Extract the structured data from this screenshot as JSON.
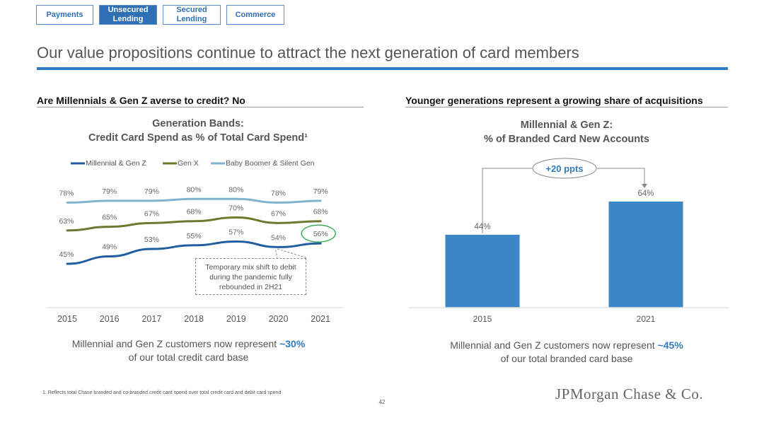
{
  "nav": {
    "tabs": [
      {
        "label": "Payments",
        "active": false
      },
      {
        "label": "Unsecured\nLending",
        "active": true
      },
      {
        "label": "Secured\nLending",
        "active": false
      },
      {
        "label": "Commerce",
        "active": false
      }
    ]
  },
  "page": {
    "title": "Our value propositions continue to attract the next generation of card members",
    "footnote": "1. Reflects total Chase branded and co-branded credit card spend over total credit card and debit card spend",
    "page_number": "42",
    "logo_text": "JPMorgan Chase & Co."
  },
  "left": {
    "heading": "Are Millennials & Gen Z averse to credit? No",
    "caption_prefix": "Millennial and Gen Z customers now represent ",
    "caption_value": "~30%",
    "caption_suffix": "of our total credit card base",
    "annotation_lines": [
      "Temporary mix shift to debit",
      "during the pandemic fully",
      "rebounded in 2H21"
    ]
  },
  "right": {
    "heading": "Younger generations represent a growing share of acquisitions",
    "caption_prefix": "Millennial and Gen Z customers now represent ",
    "caption_value": "~45%",
    "caption_suffix": "of our total branded card base",
    "change_label": "+20 ppts"
  },
  "colors": {
    "accent": "#2f7bbf",
    "millennial": "#1f5fa0",
    "genx": "#6b7a2e",
    "boomer": "#7fb3cf",
    "bar": "#3b86c6",
    "highlight_circle": "#2aa84a"
  },
  "chart_data": [
    {
      "type": "line",
      "title": "Generation Bands:",
      "subtitle": "Credit Card Spend as % of Total Card Spend¹",
      "x": [
        "2015",
        "2016",
        "2017",
        "2018",
        "2019",
        "2020",
        "2021"
      ],
      "series": [
        {
          "name": "Millennial & Gen Z",
          "values": [
            45,
            49,
            53,
            55,
            57,
            54,
            56
          ],
          "labels": [
            "45%",
            "49%",
            "53%",
            "55%",
            "57%",
            "54%",
            "56%"
          ]
        },
        {
          "name": "Gen X",
          "values": [
            63,
            65,
            67,
            68,
            70,
            67,
            68
          ],
          "labels": [
            "63%",
            "65%",
            "67%",
            "68%",
            "70%",
            "67%",
            "68%"
          ]
        },
        {
          "name": "Baby Boomer & Silent Gen",
          "values": [
            78,
            79,
            79,
            80,
            80,
            78,
            79
          ],
          "labels": [
            "78%",
            "79%",
            "79%",
            "80%",
            "80%",
            "78%",
            "79%"
          ]
        }
      ],
      "legend": "top",
      "grid": false
    },
    {
      "type": "bar",
      "title": "Millennial & Gen Z:",
      "subtitle": "% of Branded Card New Accounts",
      "categories": [
        "2015",
        "2021"
      ],
      "values": [
        44,
        64
      ],
      "labels": [
        "44%",
        "64%"
      ],
      "grid": false
    }
  ]
}
